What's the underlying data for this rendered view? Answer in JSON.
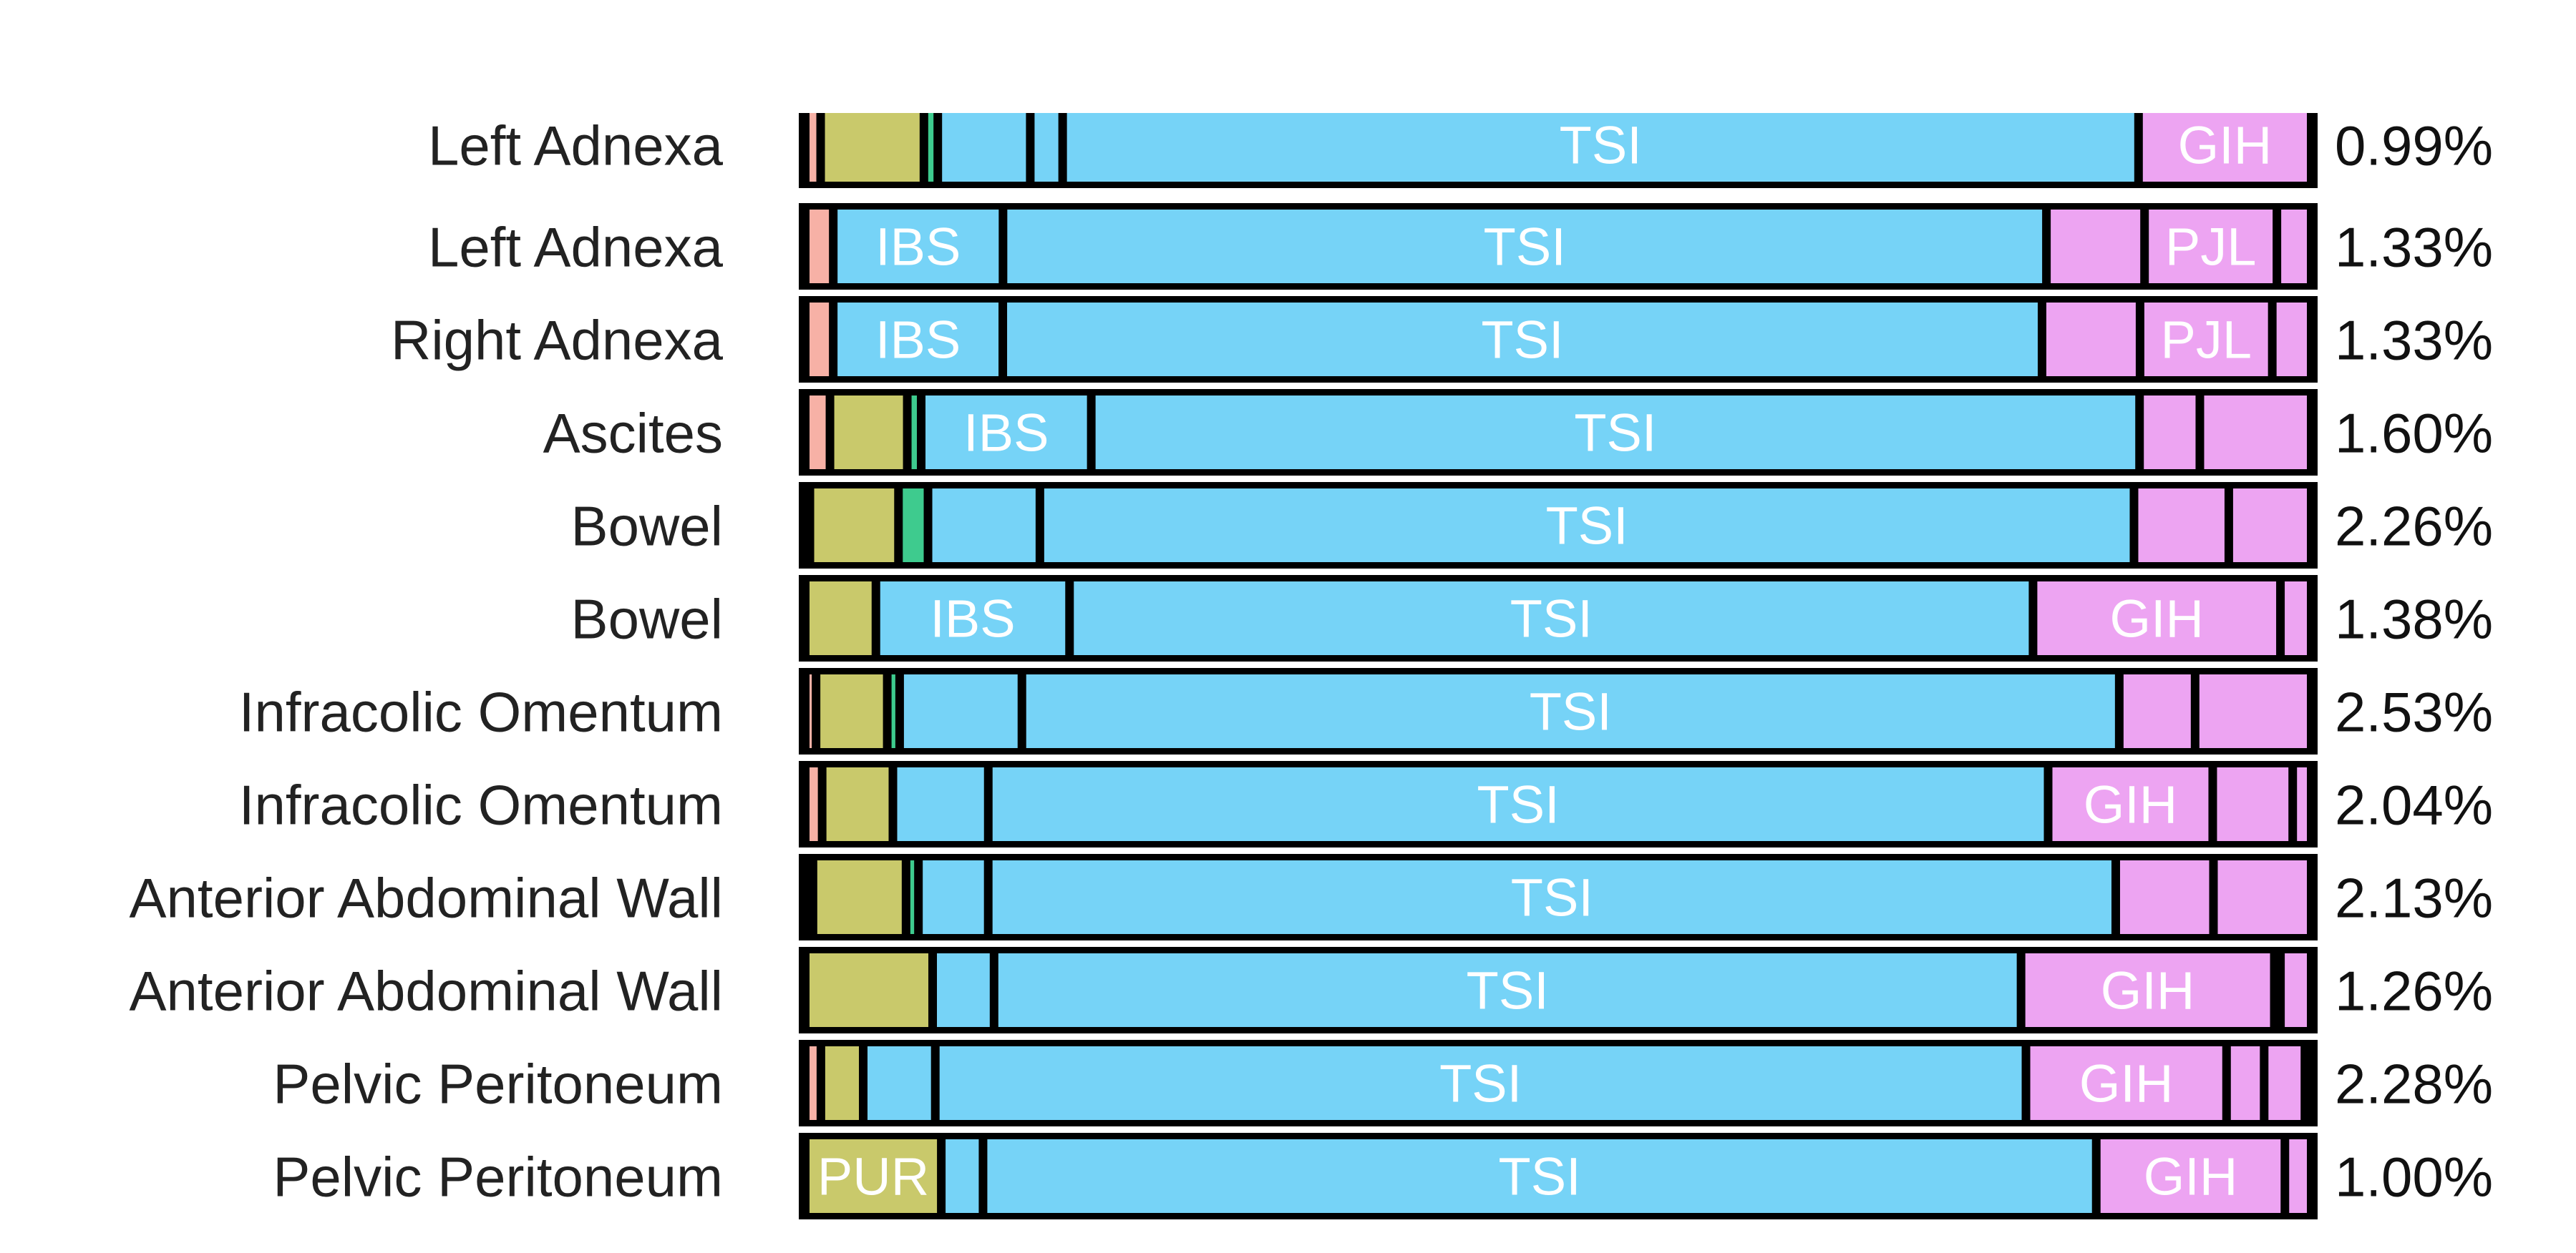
{
  "chart_data": {
    "type": "bar",
    "orientation": "horizontal",
    "stacked": "normalized",
    "title": "",
    "xlabel": "",
    "ylabel": "",
    "grid": false,
    "legend": "none",
    "rows": [
      {
        "label": "Left Adnexa",
        "value_label": "0.99%",
        "segments": [
          {
            "c": "salmon",
            "w": 1.0
          },
          {
            "c": "olive",
            "w": 6.7
          },
          {
            "c": "green",
            "w": 0.9
          },
          {
            "c": "blue",
            "w": 6.0
          },
          {
            "c": "blue",
            "w": 2.1
          },
          {
            "c": "blue",
            "w": 69.8,
            "label": "TSI"
          },
          {
            "c": "pink",
            "w": 11.2,
            "label": "GIH"
          }
        ]
      },
      {
        "label": "Left Adnexa",
        "value_label": "1.33%",
        "segments": [
          {
            "c": "salmon",
            "w": 1.8
          },
          {
            "c": "blue",
            "w": 10.9,
            "label": "IBS"
          },
          {
            "c": "blue",
            "w": 67.0,
            "label": "TSI"
          },
          {
            "c": "pink",
            "w": 6.3
          },
          {
            "c": "pink",
            "w": 8.5,
            "label": "PJL"
          },
          {
            "c": "pink",
            "w": 2.2
          }
        ]
      },
      {
        "label": "Right Adnexa",
        "value_label": "1.33%",
        "segments": [
          {
            "c": "salmon",
            "w": 1.8
          },
          {
            "c": "blue",
            "w": 10.9,
            "label": "IBS"
          },
          {
            "c": "blue",
            "w": 66.8,
            "label": "TSI"
          },
          {
            "c": "pink",
            "w": 6.3
          },
          {
            "c": "pink",
            "w": 8.5,
            "label": "PJL"
          },
          {
            "c": "pink",
            "w": 2.5
          }
        ]
      },
      {
        "label": "Ascites",
        "value_label": "1.60%",
        "segments": [
          {
            "c": "salmon",
            "w": 1.6
          },
          {
            "c": "olive",
            "w": 5.0
          },
          {
            "c": "green",
            "w": 0.9
          },
          {
            "c": "blue",
            "w": 11.0,
            "label": "IBS"
          },
          {
            "c": "blue",
            "w": 67.8,
            "label": "TSI"
          },
          {
            "c": "pink",
            "w": 3.9
          },
          {
            "c": "pink",
            "w": 7.2
          }
        ]
      },
      {
        "label": "Bowel",
        "value_label": "2.26%",
        "segments": [
          {
            "c": "salmon",
            "w": 0.3
          },
          {
            "c": "olive",
            "w": 5.7
          },
          {
            "c": "green",
            "w": 1.9
          },
          {
            "c": "blue",
            "w": 7.2
          },
          {
            "c": "blue",
            "w": 70.4,
            "label": "TSI"
          },
          {
            "c": "pink",
            "w": 6.1
          },
          {
            "c": "pink",
            "w": 5.3
          }
        ]
      },
      {
        "label": "Bowel",
        "value_label": "1.38%",
        "segments": [
          {
            "c": "olive",
            "w": 4.6
          },
          {
            "c": "blue",
            "w": 12.6,
            "label": "IBS"
          },
          {
            "c": "blue",
            "w": 62.7,
            "label": "TSI"
          },
          {
            "c": "pink",
            "w": 16.1,
            "label": "GIH"
          },
          {
            "c": "pink",
            "w": 2.0
          }
        ]
      },
      {
        "label": "Infracolic Omentum",
        "value_label": "2.53%",
        "segments": [
          {
            "c": "salmon",
            "w": 0.7
          },
          {
            "c": "olive",
            "w": 4.6
          },
          {
            "c": "green",
            "w": 0.8
          },
          {
            "c": "blue",
            "w": 7.9
          },
          {
            "c": "blue",
            "w": 70.9,
            "label": "TSI"
          },
          {
            "c": "pink",
            "w": 4.9
          },
          {
            "c": "pink",
            "w": 7.5
          }
        ]
      },
      {
        "label": "Infracolic Omentum",
        "value_label": "2.04%",
        "segments": [
          {
            "c": "salmon",
            "w": 1.1
          },
          {
            "c": "olive",
            "w": 4.6
          },
          {
            "c": "blue",
            "w": 6.2
          },
          {
            "c": "blue",
            "w": 68.9,
            "label": "TSI"
          },
          {
            "c": "pink",
            "w": 10.7,
            "label": "GIH"
          },
          {
            "c": "pink",
            "w": 5.2
          },
          {
            "c": "pink",
            "w": 1.2
          }
        ]
      },
      {
        "label": "Anterior Abdominal Wall",
        "value_label": "2.13%",
        "segments": [
          {
            "c": "salmon",
            "w": 0.5
          },
          {
            "c": "olive",
            "w": 6.0
          },
          {
            "c": "green",
            "w": 0.8
          },
          {
            "c": "blue",
            "w": 4.5
          },
          {
            "c": "blue",
            "w": 72.7,
            "label": "TSI"
          },
          {
            "c": "pink",
            "w": 6.3
          },
          {
            "c": "pink",
            "w": 6.3
          }
        ]
      },
      {
        "label": "Anterior Abdominal Wall",
        "value_label": "1.26%",
        "segments": [
          {
            "c": "olive",
            "w": 8.3
          },
          {
            "c": "blue",
            "w": 4.0
          },
          {
            "c": "blue",
            "w": 66.9,
            "label": "TSI"
          },
          {
            "c": "pink",
            "w": 16.5,
            "label": "GIH"
          },
          {
            "c": "pink",
            "w": 0.4
          },
          {
            "c": "pink",
            "w": 2.0
          }
        ]
      },
      {
        "label": "Pelvic Peritoneum",
        "value_label": "2.28%",
        "segments": [
          {
            "c": "salmon",
            "w": 1.0
          },
          {
            "c": "olive",
            "w": 2.7
          },
          {
            "c": "blue",
            "w": 4.6
          },
          {
            "c": "blue",
            "w": 69.6,
            "label": "TSI"
          },
          {
            "c": "pink",
            "w": 12.8,
            "label": "GIH"
          },
          {
            "c": "pink",
            "w": 2.4
          },
          {
            "c": "pink",
            "w": 2.6
          },
          {
            "c": "pink",
            "w": 0.4
          }
        ]
      },
      {
        "label": "Pelvic Peritoneum",
        "value_label": "1.00%",
        "segments": [
          {
            "c": "olive",
            "w": 8.8,
            "label": "PUR"
          },
          {
            "c": "blue",
            "w": 2.7
          },
          {
            "c": "blue",
            "w": 72.0,
            "label": "TSI"
          },
          {
            "c": "pink",
            "w": 12.2,
            "label": "GIH"
          },
          {
            "c": "pink",
            "w": 1.7
          }
        ]
      }
    ],
    "colors": {
      "salmon": "#f7b1a6",
      "olive": "#c9c96b",
      "green": "#3ecb8e",
      "blue": "#76d3f7",
      "pink": "#eda4f2",
      "separator": "#000000"
    }
  }
}
